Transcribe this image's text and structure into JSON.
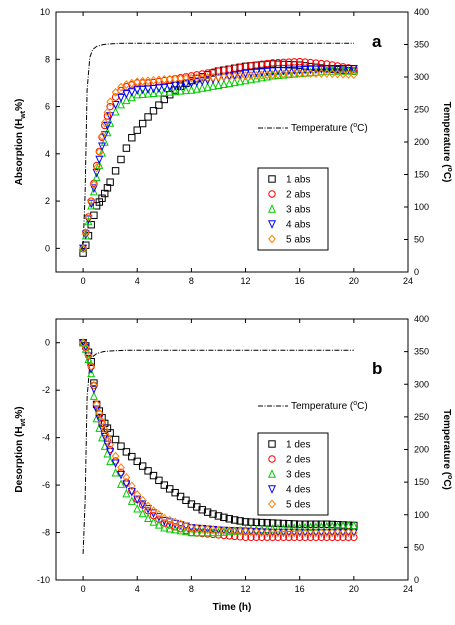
{
  "chart_data": [
    {
      "type": "scatter",
      "panel_label": "a",
      "ylabel": "Absorption (Hwt%)",
      "ylabel_parts": [
        "Absorption (H",
        "wt",
        "%)"
      ],
      "ylabel_right": "Temperature (°C)",
      "ylabel_right_parts": [
        "Temperature (",
        "o",
        "C)"
      ],
      "xlim": [
        -2,
        24
      ],
      "ylim": [
        -1,
        10
      ],
      "ylim_right": [
        0,
        400
      ],
      "x_ticks": [
        "0",
        "4",
        "8",
        "12",
        "16",
        "20",
        "24"
      ],
      "y_ticks": [
        "0",
        "2",
        "4",
        "6",
        "8",
        "10"
      ],
      "y_right_ticks": [
        "0",
        "50",
        "100",
        "150",
        "200",
        "250",
        "300",
        "350",
        "400"
      ],
      "legend": [
        "1 abs",
        "2 abs",
        "3 abs",
        "4 abs",
        "5 abs"
      ],
      "legend_position": "center-right",
      "temperature_legend": "Temperature (°C)",
      "temperature_legend_parts": [
        "Temperature (",
        "o",
        "C)"
      ],
      "colors": [
        "#000000",
        "#ff0000",
        "#00cc00",
        "#0000ff",
        "#ff8000"
      ],
      "markers": [
        "square",
        "circle",
        "triangle-up",
        "triangle-down",
        "diamond"
      ],
      "series": [
        {
          "name": "1 abs",
          "x": [
            0,
            0.3,
            0.6,
            1,
            1.5,
            2,
            2.5,
            3,
            3.5,
            4,
            5,
            6,
            7,
            8,
            10,
            12,
            14,
            16,
            18,
            20
          ],
          "y": [
            -0.2,
            0.3,
            1.0,
            1.8,
            2.2,
            2.8,
            3.4,
            4.0,
            4.6,
            5.0,
            5.7,
            6.3,
            6.8,
            7.1,
            7.5,
            7.7,
            7.8,
            7.75,
            7.6,
            7.5
          ]
        },
        {
          "name": "2 abs",
          "x": [
            0,
            0.3,
            0.6,
            1,
            1.5,
            2,
            2.5,
            3,
            4,
            5,
            6,
            8,
            10,
            12,
            14,
            16,
            18,
            20
          ],
          "y": [
            0.0,
            1.0,
            2.0,
            3.5,
            5.0,
            6.0,
            6.5,
            6.8,
            7.0,
            7.0,
            7.1,
            7.3,
            7.5,
            7.7,
            7.85,
            7.9,
            7.8,
            7.6
          ]
        },
        {
          "name": "3 abs",
          "x": [
            0,
            0.3,
            0.6,
            1,
            1.5,
            2,
            2.5,
            3,
            4,
            5,
            6,
            8,
            10,
            12,
            14,
            16,
            18,
            20
          ],
          "y": [
            0.0,
            0.8,
            1.8,
            3.0,
            4.3,
            5.3,
            5.9,
            6.2,
            6.5,
            6.55,
            6.6,
            6.7,
            6.9,
            7.1,
            7.3,
            7.4,
            7.5,
            7.5
          ]
        },
        {
          "name": "4 abs",
          "x": [
            0,
            0.3,
            0.6,
            1,
            1.5,
            2,
            2.5,
            3,
            4,
            5,
            6,
            8,
            10,
            12,
            14,
            16,
            18,
            20
          ],
          "y": [
            0.0,
            0.9,
            1.9,
            3.2,
            4.6,
            5.6,
            6.2,
            6.5,
            6.7,
            6.75,
            6.8,
            7.0,
            7.2,
            7.4,
            7.5,
            7.55,
            7.6,
            7.6
          ]
        },
        {
          "name": "5 abs",
          "x": [
            0,
            0.3,
            0.6,
            1,
            1.5,
            2,
            2.5,
            3,
            4,
            5,
            6,
            8,
            10,
            12,
            14,
            16,
            18,
            20
          ],
          "y": [
            0.0,
            1.0,
            2.0,
            3.4,
            5.1,
            6.2,
            6.7,
            6.9,
            7.05,
            7.1,
            7.15,
            7.2,
            7.25,
            7.3,
            7.35,
            7.4,
            7.4,
            7.35
          ]
        }
      ],
      "temperature": {
        "x": [
          0,
          0.15,
          0.3,
          0.5,
          0.7,
          1.0,
          1.5,
          2.0,
          3.0,
          5.0,
          20.0
        ],
        "y": [
          40,
          120,
          280,
          330,
          342,
          347,
          350,
          351,
          352,
          352,
          352
        ]
      }
    },
    {
      "type": "scatter",
      "panel_label": "b",
      "ylabel": "Desorption (Hwt%)",
      "ylabel_parts": [
        "Desorption (H",
        "wt",
        "%)"
      ],
      "ylabel_right": "Temperature (°C)",
      "ylabel_right_parts": [
        "Temperature (",
        "o",
        "C)"
      ],
      "xlabel": "Time (h)",
      "xlim": [
        -2,
        24
      ],
      "ylim": [
        -10,
        1
      ],
      "ylim_right": [
        0,
        400
      ],
      "x_ticks": [
        "0",
        "4",
        "8",
        "12",
        "16",
        "20",
        "24"
      ],
      "y_ticks": [
        "-10",
        "-8",
        "-6",
        "-4",
        "-2",
        "0"
      ],
      "y_right_ticks": [
        "0",
        "50",
        "100",
        "150",
        "200",
        "250",
        "300",
        "350",
        "400"
      ],
      "legend": [
        "1 des",
        "2 des",
        "3 des",
        "4 des",
        "5 des"
      ],
      "legend_position": "center-right",
      "temperature_legend": "Temperature (°C)",
      "temperature_legend_parts": [
        "Temperature (",
        "o",
        "C)"
      ],
      "colors": [
        "#000000",
        "#ff0000",
        "#00cc00",
        "#0000ff",
        "#ff8000"
      ],
      "markers": [
        "square",
        "circle",
        "triangle-up",
        "triangle-down",
        "diamond"
      ],
      "series": [
        {
          "name": "1 des",
          "x": [
            0,
            0.3,
            0.6,
            1,
            1.5,
            2,
            3,
            4,
            5,
            6,
            7,
            8,
            9,
            10,
            11,
            12,
            14,
            16,
            18,
            20
          ],
          "y": [
            0,
            -0.2,
            -0.8,
            -2.6,
            -3.3,
            -3.8,
            -4.5,
            -5.0,
            -5.5,
            -6.0,
            -6.4,
            -6.8,
            -7.1,
            -7.3,
            -7.45,
            -7.55,
            -7.6,
            -7.65,
            -7.65,
            -7.7
          ]
        },
        {
          "name": "2 des",
          "x": [
            0,
            0.3,
            0.6,
            1,
            1.5,
            2,
            3,
            4,
            5,
            6,
            8,
            10,
            12,
            14,
            16,
            18,
            20
          ],
          "y": [
            0,
            -0.3,
            -1.0,
            -2.6,
            -3.6,
            -4.5,
            -5.7,
            -6.6,
            -7.2,
            -7.6,
            -8.0,
            -8.1,
            -8.2,
            -8.2,
            -8.2,
            -8.2,
            -8.2
          ]
        },
        {
          "name": "3 des",
          "x": [
            0,
            0.3,
            0.6,
            1,
            1.5,
            2,
            3,
            4,
            5,
            6,
            8,
            10,
            12,
            14,
            16,
            18,
            20
          ],
          "y": [
            0,
            -0.4,
            -1.3,
            -3.2,
            -4.2,
            -5.0,
            -6.2,
            -7.0,
            -7.5,
            -7.8,
            -8.0,
            -8.0,
            -7.9,
            -7.85,
            -7.8,
            -7.75,
            -7.7
          ]
        },
        {
          "name": "4 des",
          "x": [
            0,
            0.3,
            0.6,
            1,
            1.5,
            2,
            3,
            4,
            5,
            6,
            8,
            10,
            12,
            14,
            16,
            18,
            20
          ],
          "y": [
            0,
            -0.3,
            -1.1,
            -2.8,
            -3.8,
            -4.6,
            -5.8,
            -6.6,
            -7.1,
            -7.5,
            -7.8,
            -7.9,
            -7.95,
            -8.0,
            -8.0,
            -8.0,
            -8.0
          ]
        },
        {
          "name": "5 des",
          "x": [
            0,
            0.3,
            0.6,
            1,
            1.5,
            2,
            3,
            4,
            5,
            6,
            8,
            10,
            12,
            14,
            16,
            18,
            20
          ],
          "y": [
            0,
            -0.3,
            -1.0,
            -2.6,
            -3.5,
            -4.3,
            -5.5,
            -6.4,
            -7.0,
            -7.4,
            -7.8,
            -7.9,
            -7.95,
            -8.0,
            -8.0,
            -8.0,
            -8.0
          ]
        }
      ],
      "temperature": {
        "x": [
          0,
          0.15,
          0.3,
          0.5,
          0.7,
          1.0,
          1.5,
          2.0,
          3.0,
          5.0,
          20.0
        ],
        "y": [
          40,
          120,
          280,
          330,
          342,
          347,
          350,
          351,
          352,
          352,
          352
        ]
      }
    }
  ]
}
